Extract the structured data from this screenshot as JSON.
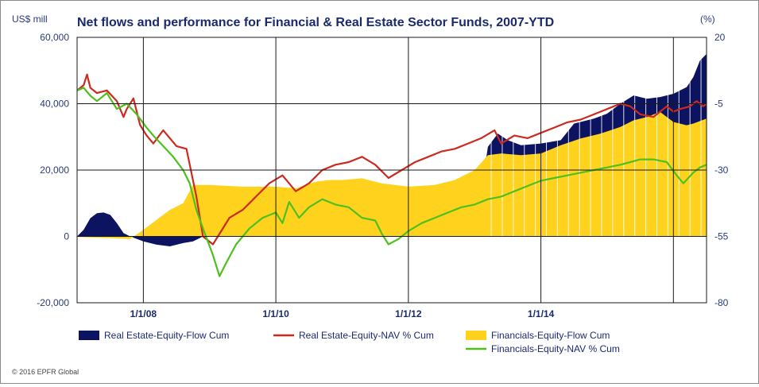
{
  "chart_data": {
    "type": "area",
    "title": "Net flows and performance for Financial & Real Estate Sector Funds, 2007-YTD",
    "left_unit": "US$ mill",
    "right_unit": "(%)",
    "left_axis": {
      "min": -20000,
      "max": 60000,
      "ticks": [
        -20000,
        0,
        20000,
        40000,
        60000
      ],
      "tick_labels": [
        "-20,000",
        "0",
        "20,000",
        "40,000",
        "60,000"
      ]
    },
    "right_axis": {
      "min": -80,
      "max": 20,
      "ticks": [
        -80,
        -55,
        -30,
        -5,
        20
      ],
      "tick_labels": [
        "-80",
        "-55",
        "-30",
        "-5",
        "20"
      ]
    },
    "x_axis": {
      "start": 2007.0,
      "end": 2016.5,
      "tick_labels": [
        "1/1/08",
        "1/1/10",
        "1/1/12",
        "1/1/14"
      ],
      "tick_years": [
        2008,
        2010,
        2012,
        2014
      ],
      "gridline_years": [
        2008,
        2010,
        2012,
        2014,
        2016
      ]
    },
    "copyright": "© 2016 EPFR Global",
    "series": [
      {
        "name": "Real Estate-Equity-Flow Cum",
        "type": "area",
        "axis": "left",
        "color": "#0c1462",
        "points": [
          [
            2007.0,
            0
          ],
          [
            2007.1,
            2000
          ],
          [
            2007.2,
            5500
          ],
          [
            2007.3,
            7000
          ],
          [
            2007.4,
            7200
          ],
          [
            2007.5,
            6500
          ],
          [
            2007.6,
            4000
          ],
          [
            2007.7,
            1000
          ],
          [
            2007.8,
            0
          ],
          [
            2008.0,
            -1500
          ],
          [
            2008.2,
            -2500
          ],
          [
            2008.4,
            -3000
          ],
          [
            2008.6,
            -2000
          ],
          [
            2008.75,
            -1500
          ],
          [
            2008.9,
            0
          ],
          [
            2009.0,
            200
          ],
          [
            2009.5,
            600
          ],
          [
            2010.0,
            1000
          ],
          [
            2010.5,
            1000
          ],
          [
            2011.0,
            1000
          ],
          [
            2011.5,
            900
          ],
          [
            2012.0,
            700
          ],
          [
            2012.5,
            600
          ],
          [
            2013.0,
            500
          ],
          [
            2013.2,
            27000
          ],
          [
            2013.35,
            31000
          ],
          [
            2013.5,
            29000
          ],
          [
            2013.7,
            27500
          ],
          [
            2014.0,
            28000
          ],
          [
            2014.3,
            29000
          ],
          [
            2014.5,
            34000
          ],
          [
            2014.8,
            35500
          ],
          [
            2015.0,
            37000
          ],
          [
            2015.2,
            40000
          ],
          [
            2015.4,
            42500
          ],
          [
            2015.6,
            41500
          ],
          [
            2015.8,
            42000
          ],
          [
            2016.0,
            43000
          ],
          [
            2016.2,
            45000
          ],
          [
            2016.3,
            48000
          ],
          [
            2016.4,
            53000
          ],
          [
            2016.5,
            55000
          ]
        ]
      },
      {
        "name": "Financials-Equity-Flow Cum",
        "type": "area",
        "axis": "left",
        "color": "#ffd21e",
        "points": [
          [
            2007.0,
            -200
          ],
          [
            2007.5,
            -500
          ],
          [
            2007.8,
            -800
          ],
          [
            2008.0,
            2000
          ],
          [
            2008.2,
            5000
          ],
          [
            2008.4,
            8000
          ],
          [
            2008.6,
            10000
          ],
          [
            2008.75,
            15500
          ],
          [
            2009.0,
            15500
          ],
          [
            2009.5,
            15000
          ],
          [
            2010.0,
            15000
          ],
          [
            2010.3,
            14500
          ],
          [
            2010.6,
            16500
          ],
          [
            2010.8,
            17000
          ],
          [
            2011.0,
            17000
          ],
          [
            2011.3,
            17500
          ],
          [
            2011.6,
            16000
          ],
          [
            2012.0,
            15000
          ],
          [
            2012.4,
            15500
          ],
          [
            2012.7,
            17000
          ],
          [
            2013.0,
            20000
          ],
          [
            2013.2,
            24500
          ],
          [
            2013.4,
            25000
          ],
          [
            2013.7,
            24500
          ],
          [
            2014.0,
            25000
          ],
          [
            2014.3,
            27500
          ],
          [
            2014.6,
            29500
          ],
          [
            2014.9,
            31000
          ],
          [
            2015.2,
            33000
          ],
          [
            2015.4,
            35000
          ],
          [
            2015.6,
            36000
          ],
          [
            2015.8,
            37500
          ],
          [
            2016.0,
            34500
          ],
          [
            2016.2,
            33500
          ],
          [
            2016.3,
            34000
          ],
          [
            2016.5,
            35500
          ]
        ]
      },
      {
        "name": "Real Estate-Equity-NAV % Cum",
        "type": "line",
        "axis": "right",
        "color": "#cc2a1e",
        "points": [
          [
            2007.0,
            0
          ],
          [
            2007.1,
            2
          ],
          [
            2007.15,
            6
          ],
          [
            2007.2,
            1
          ],
          [
            2007.3,
            -1
          ],
          [
            2007.45,
            0
          ],
          [
            2007.6,
            -4
          ],
          [
            2007.7,
            -10
          ],
          [
            2007.75,
            -7
          ],
          [
            2007.85,
            -3
          ],
          [
            2007.95,
            -13
          ],
          [
            2008.05,
            -17
          ],
          [
            2008.15,
            -20
          ],
          [
            2008.3,
            -15
          ],
          [
            2008.4,
            -18
          ],
          [
            2008.5,
            -21
          ],
          [
            2008.65,
            -22
          ],
          [
            2008.8,
            -40
          ],
          [
            2008.9,
            -55
          ],
          [
            2009.05,
            -58
          ],
          [
            2009.2,
            -52
          ],
          [
            2009.3,
            -48
          ],
          [
            2009.5,
            -45
          ],
          [
            2009.7,
            -40
          ],
          [
            2009.9,
            -35
          ],
          [
            2010.1,
            -32
          ],
          [
            2010.3,
            -38
          ],
          [
            2010.5,
            -35
          ],
          [
            2010.7,
            -30
          ],
          [
            2010.9,
            -28
          ],
          [
            2011.1,
            -27
          ],
          [
            2011.3,
            -25
          ],
          [
            2011.5,
            -28
          ],
          [
            2011.7,
            -33
          ],
          [
            2011.9,
            -30
          ],
          [
            2012.1,
            -27
          ],
          [
            2012.3,
            -25
          ],
          [
            2012.5,
            -23
          ],
          [
            2012.7,
            -22
          ],
          [
            2012.9,
            -20
          ],
          [
            2013.1,
            -18
          ],
          [
            2013.3,
            -15
          ],
          [
            2013.4,
            -20
          ],
          [
            2013.6,
            -17
          ],
          [
            2013.8,
            -18
          ],
          [
            2014.0,
            -16
          ],
          [
            2014.2,
            -14
          ],
          [
            2014.4,
            -12
          ],
          [
            2014.6,
            -11
          ],
          [
            2014.8,
            -9
          ],
          [
            2015.0,
            -7
          ],
          [
            2015.2,
            -5
          ],
          [
            2015.35,
            -6
          ],
          [
            2015.5,
            -9
          ],
          [
            2015.7,
            -10
          ],
          [
            2015.9,
            -6
          ],
          [
            2016.0,
            -8
          ],
          [
            2016.1,
            -7
          ],
          [
            2016.25,
            -6
          ],
          [
            2016.35,
            -4
          ],
          [
            2016.45,
            -6
          ],
          [
            2016.5,
            -5
          ]
        ]
      },
      {
        "name": "Financials-Equity-NAV % Cum",
        "type": "line",
        "axis": "right",
        "color": "#4ec01e",
        "points": [
          [
            2007.0,
            0
          ],
          [
            2007.1,
            1
          ],
          [
            2007.2,
            -2
          ],
          [
            2007.3,
            -4
          ],
          [
            2007.45,
            -1
          ],
          [
            2007.6,
            -7
          ],
          [
            2007.75,
            -5
          ],
          [
            2007.9,
            -9
          ],
          [
            2008.05,
            -14
          ],
          [
            2008.15,
            -17
          ],
          [
            2008.3,
            -21
          ],
          [
            2008.45,
            -25
          ],
          [
            2008.6,
            -30
          ],
          [
            2008.7,
            -35
          ],
          [
            2008.8,
            -45
          ],
          [
            2008.9,
            -52
          ],
          [
            2009.05,
            -62
          ],
          [
            2009.15,
            -70
          ],
          [
            2009.25,
            -65
          ],
          [
            2009.4,
            -58
          ],
          [
            2009.6,
            -52
          ],
          [
            2009.8,
            -48
          ],
          [
            2010.0,
            -46
          ],
          [
            2010.1,
            -50
          ],
          [
            2010.2,
            -42
          ],
          [
            2010.35,
            -48
          ],
          [
            2010.5,
            -44
          ],
          [
            2010.7,
            -41
          ],
          [
            2010.9,
            -43
          ],
          [
            2011.1,
            -44
          ],
          [
            2011.3,
            -48
          ],
          [
            2011.5,
            -49
          ],
          [
            2011.6,
            -54
          ],
          [
            2011.7,
            -58
          ],
          [
            2011.85,
            -56
          ],
          [
            2012.0,
            -53
          ],
          [
            2012.2,
            -50
          ],
          [
            2012.4,
            -48
          ],
          [
            2012.6,
            -46
          ],
          [
            2012.8,
            -44
          ],
          [
            2013.0,
            -43
          ],
          [
            2013.2,
            -41
          ],
          [
            2013.4,
            -40
          ],
          [
            2013.6,
            -38
          ],
          [
            2013.8,
            -36
          ],
          [
            2014.0,
            -34
          ],
          [
            2014.2,
            -33
          ],
          [
            2014.4,
            -32
          ],
          [
            2014.6,
            -31
          ],
          [
            2014.8,
            -30
          ],
          [
            2015.0,
            -29
          ],
          [
            2015.2,
            -28
          ],
          [
            2015.35,
            -27
          ],
          [
            2015.5,
            -26
          ],
          [
            2015.7,
            -26
          ],
          [
            2015.9,
            -27
          ],
          [
            2016.05,
            -32
          ],
          [
            2016.15,
            -35
          ],
          [
            2016.3,
            -31
          ],
          [
            2016.4,
            -29
          ],
          [
            2016.5,
            -28
          ]
        ]
      }
    ],
    "legend": [
      {
        "label": "Real Estate-Equity-Flow Cum",
        "swatch": "area",
        "color": "#0c1462"
      },
      {
        "label": "Real Estate-Equity-NAV % Cum",
        "swatch": "line",
        "color": "#cc2a1e"
      },
      {
        "label": "Financials-Equity-Flow Cum",
        "swatch": "area",
        "color": "#ffd21e"
      },
      {
        "label": "Financials-Equity-NAV % Cum",
        "swatch": "line",
        "color": "#4ec01e"
      }
    ]
  }
}
